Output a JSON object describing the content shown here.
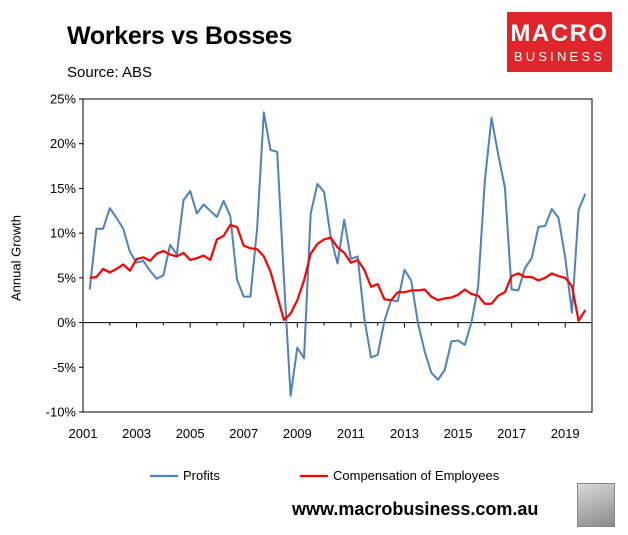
{
  "title": "Workers vs Bosses",
  "subtitle": "Source: ABS",
  "logo": {
    "line1": "MACRO",
    "line2": "BUSINESS"
  },
  "footer": "www.macrobusiness.com.au",
  "colors": {
    "profits": "#4f81bd",
    "compensation": "#ff0000",
    "logo": "#e0252b"
  },
  "chart_data": {
    "type": "line",
    "ylabel": "Annual Growth",
    "ylim": [
      -10,
      25
    ],
    "yticks": [
      -10,
      -5,
      0,
      5,
      10,
      15,
      20,
      25
    ],
    "ytick_labels": [
      "-10%",
      "-5%",
      "0%",
      "5%",
      "10%",
      "15%",
      "20%",
      "25%"
    ],
    "xlim": [
      2001,
      2020
    ],
    "xticks": [
      2001,
      2003,
      2005,
      2007,
      2009,
      2011,
      2013,
      2015,
      2017,
      2019
    ],
    "xtick_labels": [
      "2001",
      "2003",
      "2005",
      "2007",
      "2009",
      "2011",
      "2013",
      "2015",
      "2017",
      "2019"
    ],
    "grid": false,
    "legend": "bottom",
    "series": [
      {
        "name": "Profits",
        "color": "#4f81bd",
        "x": [
          2001.25,
          2001.5,
          2001.75,
          2002,
          2002.25,
          2002.5,
          2002.75,
          2003,
          2003.25,
          2003.5,
          2003.75,
          2004,
          2004.25,
          2004.5,
          2004.75,
          2005,
          2005.25,
          2005.5,
          2005.75,
          2006,
          2006.25,
          2006.5,
          2006.75,
          2007,
          2007.25,
          2007.5,
          2007.75,
          2008,
          2008.25,
          2008.5,
          2008.75,
          2009,
          2009.25,
          2009.5,
          2009.75,
          2010,
          2010.25,
          2010.5,
          2010.75,
          2011,
          2011.25,
          2011.5,
          2011.75,
          2012,
          2012.25,
          2012.5,
          2012.75,
          2013,
          2013.25,
          2013.5,
          2013.75,
          2014,
          2014.25,
          2014.5,
          2014.75,
          2015,
          2015.25,
          2015.5,
          2015.75,
          2016,
          2016.25,
          2016.5,
          2016.75,
          2017,
          2017.25,
          2017.5,
          2017.75,
          2018,
          2018.25,
          2018.5,
          2018.75,
          2019,
          2019.25,
          2019.5,
          2019.75
        ],
        "y": [
          3.7,
          10.5,
          10.5,
          12.8,
          11.7,
          10.5,
          7.9,
          6.7,
          6.9,
          5.8,
          4.9,
          5.3,
          8.7,
          7.6,
          13.7,
          14.7,
          12.2,
          13.2,
          12.5,
          11.8,
          13.6,
          11.9,
          4.8,
          2.9,
          2.9,
          10.5,
          23.5,
          19.3,
          19.1,
          5.0,
          -8.2,
          -2.8,
          -4.0,
          12.2,
          15.5,
          14.6,
          9.5,
          6.6,
          11.5,
          7.1,
          7.4,
          0.5,
          -3.9,
          -3.6,
          0.2,
          2.5,
          2.4,
          5.9,
          4.7,
          0,
          -3.2,
          -5.6,
          -6.4,
          -5.3,
          -2.1,
          -2.0,
          -2.5,
          0,
          4.0,
          15.8,
          22.9,
          18.8,
          15.1,
          3.7,
          3.6,
          6.1,
          7.2,
          10.7,
          10.8,
          12.7,
          11.7,
          7.3,
          1.1,
          12.6,
          14.4
        ]
      },
      {
        "name": "Compensation of Employees",
        "color": "#ff0000",
        "x": [
          2001.25,
          2001.5,
          2001.75,
          2002,
          2002.25,
          2002.5,
          2002.75,
          2003,
          2003.25,
          2003.5,
          2003.75,
          2004,
          2004.25,
          2004.5,
          2004.75,
          2005,
          2005.25,
          2005.5,
          2005.75,
          2006,
          2006.25,
          2006.5,
          2006.75,
          2007,
          2007.25,
          2007.5,
          2007.75,
          2008,
          2008.25,
          2008.5,
          2008.75,
          2009,
          2009.25,
          2009.5,
          2009.75,
          2010,
          2010.25,
          2010.5,
          2010.75,
          2011,
          2011.25,
          2011.5,
          2011.75,
          2012,
          2012.25,
          2012.5,
          2012.75,
          2013,
          2013.25,
          2013.5,
          2013.75,
          2014,
          2014.25,
          2014.5,
          2014.75,
          2015,
          2015.25,
          2015.5,
          2015.75,
          2016,
          2016.25,
          2016.5,
          2016.75,
          2017,
          2017.25,
          2017.5,
          2017.75,
          2018,
          2018.25,
          2018.5,
          2018.75,
          2019,
          2019.25,
          2019.5,
          2019.75
        ],
        "y": [
          5.0,
          5.1,
          6.0,
          5.6,
          6.0,
          6.5,
          5.8,
          7.1,
          7.3,
          6.9,
          7.7,
          8.0,
          7.6,
          7.4,
          7.8,
          7.0,
          7.2,
          7.5,
          7.0,
          9.3,
          9.7,
          10.9,
          10.7,
          8.6,
          8.3,
          8.2,
          7.4,
          5.7,
          3.0,
          0.3,
          1.0,
          2.5,
          4.7,
          7.7,
          8.8,
          9.3,
          9.5,
          8.4,
          7.8,
          6.7,
          7.0,
          5.9,
          4.0,
          4.3,
          2.6,
          2.5,
          3.4,
          3.4,
          3.6,
          3.6,
          3.7,
          2.9,
          2.5,
          2.7,
          2.8,
          3.1,
          3.7,
          3.2,
          3.0,
          2.1,
          2.1,
          3.0,
          3.4,
          5.2,
          5.5,
          5.1,
          5.1,
          4.7,
          5.0,
          5.5,
          5.2,
          5.0,
          4.1,
          0.2,
          1.4
        ]
      }
    ]
  }
}
